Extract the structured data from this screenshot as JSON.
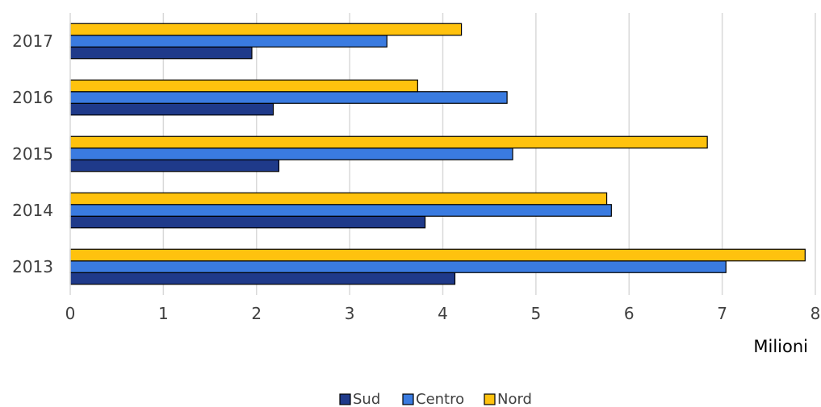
{
  "chart_data": {
    "type": "bar",
    "orientation": "horizontal",
    "title": "",
    "xlabel": "Milioni",
    "ylabel": "",
    "categories": [
      "2013",
      "2014",
      "2015",
      "2016",
      "2017"
    ],
    "series": [
      {
        "name": "Sud",
        "color": "#1f3a8a",
        "values": [
          4.13,
          3.81,
          2.24,
          2.18,
          1.95
        ]
      },
      {
        "name": "Centro",
        "color": "#3a7be0",
        "values": [
          7.04,
          5.81,
          4.75,
          4.69,
          3.4
        ]
      },
      {
        "name": "Nord",
        "color": "#ffc20e",
        "values": [
          7.89,
          5.76,
          6.84,
          3.73,
          4.2
        ]
      }
    ],
    "xlim": [
      0,
      8
    ],
    "xticks": [
      "0",
      "1",
      "2",
      "3",
      "4",
      "5",
      "6",
      "7",
      "8"
    ],
    "grid": true,
    "legend": "bottom"
  }
}
